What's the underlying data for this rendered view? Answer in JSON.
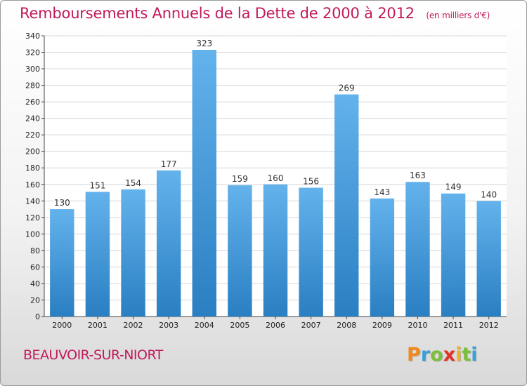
{
  "header": {
    "title": "Remboursements Annuels de la Dette de 2000 à 2012",
    "subtitle": "(en milliers d'€)"
  },
  "footer": {
    "commune": "BEAUVOIR-SUR-NIORT",
    "logo_letters": [
      "P",
      "r",
      "o",
      "x",
      "i",
      "t",
      "i"
    ],
    "logo_colors": [
      "#f08a1c",
      "#3aa0d8",
      "#7bbf3a",
      "#e2332b",
      "#f0b21c",
      "#7bbf3a",
      "#3aa0d8"
    ]
  },
  "colors": {
    "bar_top": "#63b2ec",
    "bar_bottom": "#2a7fc2",
    "grid": "#d8d8d8",
    "title": "#c2185b"
  },
  "chart_data": {
    "type": "bar",
    "categories": [
      "2000",
      "2001",
      "2002",
      "2003",
      "2004",
      "2005",
      "2006",
      "2007",
      "2008",
      "2009",
      "2010",
      "2011",
      "2012"
    ],
    "values": [
      130,
      151,
      154,
      177,
      323,
      159,
      160,
      156,
      269,
      143,
      163,
      149,
      140
    ],
    "title": "Remboursements Annuels de la Dette de 2000 à 2012",
    "xlabel": "",
    "ylabel": "",
    "ylim": [
      0,
      340
    ],
    "yticks": [
      0,
      20,
      40,
      60,
      80,
      100,
      120,
      140,
      160,
      180,
      200,
      220,
      240,
      260,
      280,
      300,
      320,
      340
    ],
    "grid": true
  }
}
